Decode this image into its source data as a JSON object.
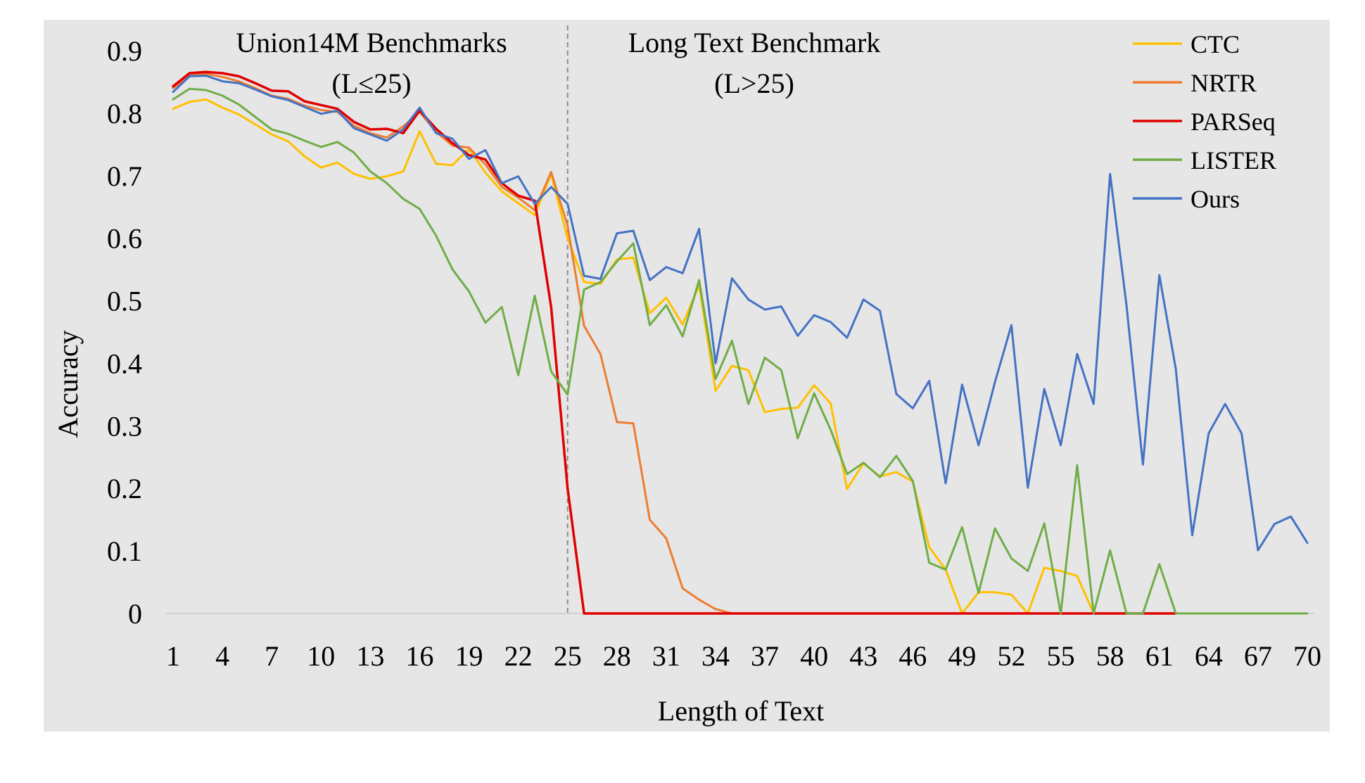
{
  "chart_data": {
    "type": "line",
    "title": "",
    "xlabel": "Length of Text",
    "ylabel": "Accuracy",
    "xlim": [
      1,
      70
    ],
    "ylim": [
      0,
      0.9
    ],
    "y_ticks": [
      "0",
      "0.1",
      "0.2",
      "0.3",
      "0.4",
      "0.5",
      "0.6",
      "0.7",
      "0.8",
      "0.9"
    ],
    "x_ticks": [
      "1",
      "4",
      "7",
      "10",
      "13",
      "16",
      "19",
      "22",
      "25",
      "28",
      "31",
      "34",
      "37",
      "40",
      "43",
      "46",
      "49",
      "52",
      "55",
      "58",
      "61",
      "64",
      "67",
      "70"
    ],
    "grid": false,
    "legend_position": "top-right",
    "background": "#e6e6e6",
    "annotations": {
      "divider_x": 25,
      "left_title": "Union14M Benchmarks",
      "left_subtitle": "(L≤25)",
      "right_title": "Long Text Benchmark",
      "right_subtitle": "(L>25)"
    },
    "series": [
      {
        "name": "CTC",
        "color": "#ffc000",
        "x_start": 1,
        "values": [
          0.807,
          0.818,
          0.822,
          0.809,
          0.798,
          0.782,
          0.766,
          0.755,
          0.731,
          0.713,
          0.721,
          0.703,
          0.695,
          0.699,
          0.707,
          0.771,
          0.719,
          0.717,
          0.743,
          0.705,
          0.675,
          0.656,
          0.637,
          0.703,
          0.6,
          0.53,
          0.527,
          0.566,
          0.569,
          0.48,
          0.505,
          0.462,
          0.525,
          0.356,
          0.396,
          0.389,
          0.322,
          0.327,
          0.329,
          0.365,
          0.336,
          0.199,
          0.24,
          0.219,
          0.226,
          0.211,
          0.106,
          0.07,
          0.0,
          0.034,
          0.034,
          0.03,
          0.0,
          0.073,
          0.068,
          0.06,
          0.0,
          null,
          null,
          null,
          null,
          null,
          null,
          null,
          null,
          null,
          null,
          null,
          null,
          null
        ]
      },
      {
        "name": "NRTR",
        "color": "#ed7d31",
        "x_start": 1,
        "values": [
          0.84,
          0.86,
          0.863,
          0.858,
          0.851,
          0.84,
          0.828,
          0.823,
          0.812,
          0.805,
          0.802,
          0.78,
          0.768,
          0.761,
          0.779,
          0.802,
          0.77,
          0.748,
          0.745,
          0.718,
          0.682,
          0.665,
          0.645,
          0.706,
          0.62,
          0.46,
          0.415,
          0.306,
          0.304,
          0.15,
          0.12,
          0.04,
          0.022,
          0.007,
          0.0,
          0.0,
          0.0,
          0.0,
          0.0,
          0.0,
          0.0,
          0.0,
          0.0,
          0.0,
          0.0,
          0.0,
          0.0,
          0.0,
          0.0,
          0.0,
          0.0,
          0.0,
          0.0,
          0.0,
          0.0,
          0.0,
          0.0,
          0.0,
          0.0,
          0.0,
          null,
          null,
          null,
          null,
          null,
          null,
          null,
          null,
          null,
          null
        ]
      },
      {
        "name": "PARSeq",
        "color": "#e00000",
        "x_start": 1,
        "values": [
          0.843,
          0.864,
          0.866,
          0.864,
          0.859,
          0.848,
          0.836,
          0.835,
          0.819,
          0.813,
          0.807,
          0.786,
          0.774,
          0.775,
          0.768,
          0.804,
          0.775,
          0.752,
          0.733,
          0.726,
          0.688,
          0.668,
          0.66,
          0.49,
          0.2,
          0.0,
          0.0,
          0.0,
          0.0,
          0.0,
          0.0,
          0.0,
          0.0,
          0.0,
          0.0,
          0.0,
          0.0,
          0.0,
          0.0,
          0.0,
          0.0,
          0.0,
          0.0,
          0.0,
          0.0,
          0.0,
          0.0,
          0.0,
          0.0,
          0.0,
          0.0,
          0.0,
          0.0,
          0.0,
          0.0,
          0.0,
          0.0,
          0.0,
          0.0,
          0.0,
          0.0,
          0.0,
          null,
          null,
          null,
          null,
          null,
          null,
          null,
          null
        ]
      },
      {
        "name": "LISTER",
        "color": "#70ad47",
        "x_start": 1,
        "values": [
          0.822,
          0.839,
          0.837,
          0.828,
          0.814,
          0.794,
          0.774,
          0.767,
          0.756,
          0.746,
          0.754,
          0.737,
          0.707,
          0.688,
          0.663,
          0.647,
          0.604,
          0.55,
          0.515,
          0.465,
          0.49,
          0.381,
          0.508,
          0.387,
          0.35,
          0.518,
          0.53,
          0.563,
          0.592,
          0.461,
          0.493,
          0.443,
          0.533,
          0.375,
          0.436,
          0.335,
          0.409,
          0.389,
          0.28,
          0.352,
          0.294,
          0.223,
          0.241,
          0.218,
          0.252,
          0.212,
          0.081,
          0.07,
          0.138,
          0.033,
          0.136,
          0.088,
          0.068,
          0.144,
          0.0,
          0.237,
          0.0,
          0.101,
          0.0,
          0.0,
          0.079,
          0.0,
          0.0,
          0.0,
          0.0,
          0.0,
          0.0,
          0.0,
          0.0,
          0.0
        ]
      },
      {
        "name": "Ours",
        "color": "#4472c4",
        "x_start": 1,
        "values": [
          0.834,
          0.859,
          0.86,
          0.851,
          0.848,
          0.838,
          0.827,
          0.821,
          0.81,
          0.799,
          0.804,
          0.776,
          0.766,
          0.756,
          0.774,
          0.809,
          0.768,
          0.759,
          0.727,
          0.741,
          0.688,
          0.699,
          0.655,
          0.682,
          0.655,
          0.54,
          0.535,
          0.608,
          0.612,
          0.533,
          0.554,
          0.544,
          0.615,
          0.4,
          0.536,
          0.502,
          0.486,
          0.491,
          0.444,
          0.477,
          0.466,
          0.441,
          0.502,
          0.484,
          0.351,
          0.328,
          0.372,
          0.208,
          0.366,
          0.269,
          0.37,
          0.461,
          0.201,
          0.359,
          0.269,
          0.415,
          0.335,
          0.703,
          0.493,
          0.238,
          0.541,
          0.391,
          0.125,
          0.288,
          0.335,
          0.288,
          0.101,
          0.143,
          0.155,
          0.113
        ]
      }
    ]
  }
}
